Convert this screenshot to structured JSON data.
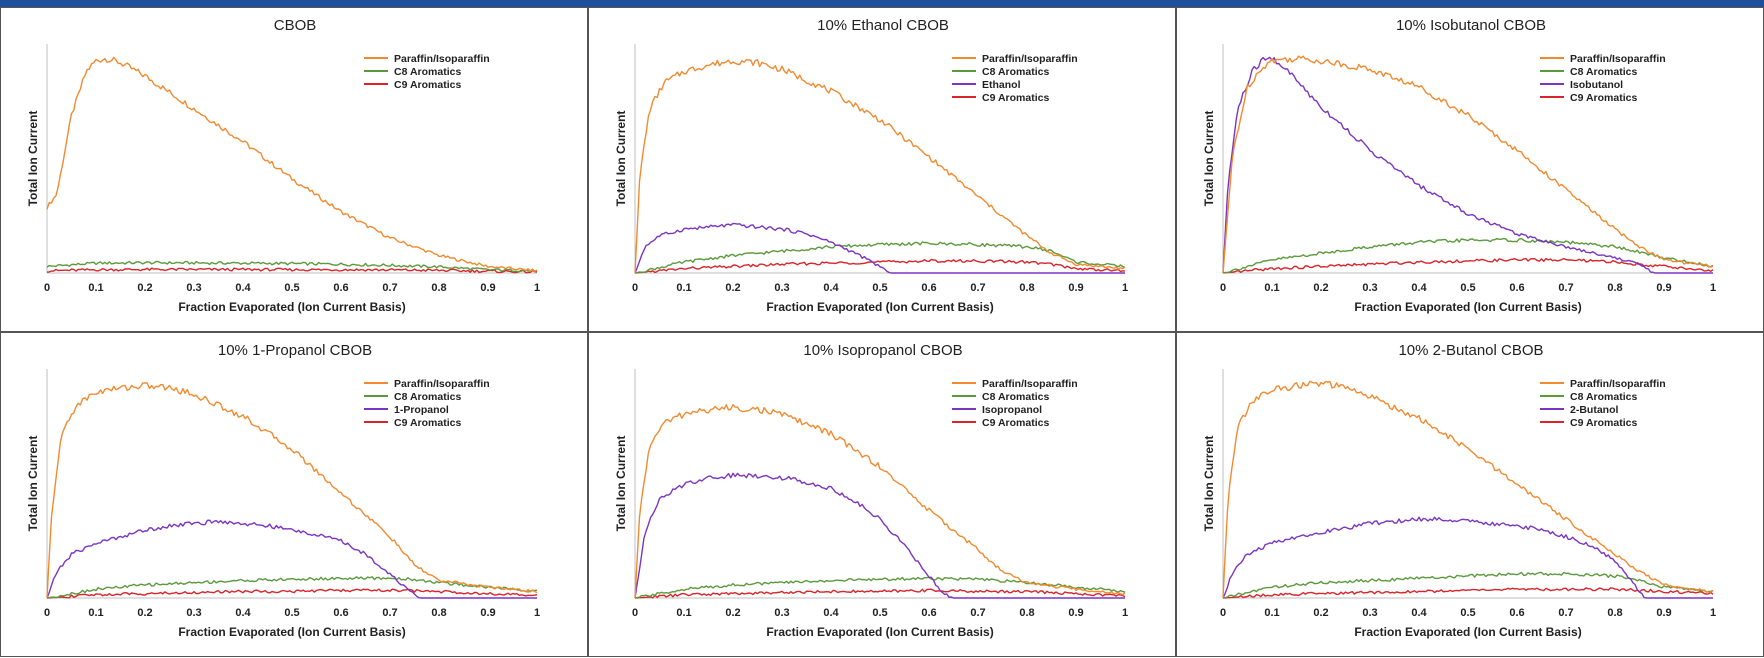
{
  "colors": {
    "paraffin": "#f28a30",
    "c8": "#5b9a3c",
    "c9": "#d9242a",
    "alcohol": "#7b35c0",
    "header_bar": "#1f4e9a"
  },
  "chart_data": [
    {
      "type": "line",
      "title": "CBOB",
      "xlabel": "Fraction Evaporated (Ion Current Basis)",
      "ylabel": "Total Ion Current",
      "x_ticks": [
        "0",
        "0.1",
        "0.2",
        "0.3",
        "0.4",
        "0.5",
        "0.6",
        "0.7",
        "0.8",
        "0.9",
        "1"
      ],
      "xlim": [
        0,
        1
      ],
      "ylim": [
        0,
        1
      ],
      "grid": false,
      "legend_position": "top-right",
      "series": [
        {
          "name": "Paraffin/Isoparaffin",
          "color_key": "paraffin",
          "x": [
            0,
            0.02,
            0.05,
            0.08,
            0.1,
            0.12,
            0.15,
            0.2,
            0.3,
            0.4,
            0.5,
            0.6,
            0.7,
            0.8,
            0.9,
            1.0
          ],
          "y": [
            0.3,
            0.36,
            0.72,
            0.92,
            0.97,
            0.98,
            0.96,
            0.9,
            0.75,
            0.6,
            0.43,
            0.28,
            0.16,
            0.08,
            0.03,
            0.01
          ]
        },
        {
          "name": "C8 Aromatics",
          "color_key": "c8",
          "x": [
            0,
            0.1,
            0.2,
            0.3,
            0.4,
            0.5,
            0.6,
            0.7,
            0.8,
            0.9,
            1.0
          ],
          "y": [
            0.03,
            0.045,
            0.047,
            0.046,
            0.045,
            0.043,
            0.04,
            0.035,
            0.028,
            0.015,
            0.01
          ]
        },
        {
          "name": "C9 Aromatics",
          "color_key": "c9",
          "x": [
            0,
            0.1,
            0.2,
            0.3,
            0.4,
            0.5,
            0.6,
            0.7,
            0.8,
            0.9,
            1.0
          ],
          "y": [
            0.01,
            0.015,
            0.016,
            0.016,
            0.016,
            0.015,
            0.015,
            0.014,
            0.012,
            0.008,
            0.005
          ]
        }
      ]
    },
    {
      "type": "line",
      "title": "10% Ethanol CBOB",
      "xlabel": "Fraction Evaporated (Ion Current Basis)",
      "ylabel": "Total Ion Current",
      "x_ticks": [
        "0",
        "0.1",
        "0.2",
        "0.3",
        "0.4",
        "0.5",
        "0.6",
        "0.7",
        "0.8",
        "0.9",
        "1"
      ],
      "xlim": [
        0,
        1
      ],
      "ylim": [
        0,
        1
      ],
      "grid": false,
      "legend_position": "top-right",
      "series": [
        {
          "name": "Paraffin/Isoparaffin",
          "color_key": "paraffin",
          "x": [
            0,
            0.01,
            0.03,
            0.06,
            0.1,
            0.15,
            0.2,
            0.25,
            0.3,
            0.4,
            0.5,
            0.6,
            0.7,
            0.8,
            0.85,
            0.9,
            1.0
          ],
          "y": [
            0,
            0.45,
            0.75,
            0.87,
            0.92,
            0.95,
            0.97,
            0.96,
            0.93,
            0.83,
            0.7,
            0.53,
            0.35,
            0.17,
            0.09,
            0.04,
            0.02
          ]
        },
        {
          "name": "C8 Aromatics",
          "color_key": "c8",
          "x": [
            0,
            0.1,
            0.2,
            0.3,
            0.4,
            0.5,
            0.6,
            0.7,
            0.8,
            0.85,
            0.9,
            1.0
          ],
          "y": [
            0,
            0.05,
            0.08,
            0.1,
            0.12,
            0.13,
            0.135,
            0.13,
            0.12,
            0.1,
            0.05,
            0.03
          ]
        },
        {
          "name": "Ethanol",
          "color_key": "alcohol",
          "x": [
            0,
            0.02,
            0.05,
            0.1,
            0.15,
            0.2,
            0.25,
            0.3,
            0.35,
            0.4,
            0.45,
            0.5,
            0.52,
            1.0
          ],
          "y": [
            0,
            0.12,
            0.17,
            0.2,
            0.21,
            0.22,
            0.21,
            0.2,
            0.18,
            0.14,
            0.09,
            0.03,
            0,
            0
          ]
        },
        {
          "name": "C9 Aromatics",
          "color_key": "c9",
          "x": [
            0,
            0.1,
            0.2,
            0.3,
            0.4,
            0.5,
            0.6,
            0.7,
            0.8,
            0.85,
            0.9,
            1.0
          ],
          "y": [
            0,
            0.02,
            0.03,
            0.04,
            0.045,
            0.05,
            0.055,
            0.055,
            0.05,
            0.04,
            0.02,
            0.01
          ]
        }
      ]
    },
    {
      "type": "line",
      "title": "10% Isobutanol CBOB",
      "xlabel": "Fraction Evaporated (Ion Current Basis)",
      "ylabel": "Total Ion Current",
      "x_ticks": [
        "0",
        "0.1",
        "0.2",
        "0.3",
        "0.4",
        "0.5",
        "0.6",
        "0.7",
        "0.8",
        "0.9",
        "1"
      ],
      "xlim": [
        0,
        1
      ],
      "ylim": [
        0,
        1
      ],
      "grid": false,
      "legend_position": "top-right",
      "series": [
        {
          "name": "Paraffin/Isoparaffin",
          "color_key": "paraffin",
          "x": [
            0,
            0.02,
            0.05,
            0.08,
            0.1,
            0.15,
            0.2,
            0.3,
            0.4,
            0.5,
            0.6,
            0.7,
            0.8,
            0.85,
            0.9,
            1.0
          ],
          "y": [
            0,
            0.55,
            0.85,
            0.94,
            0.97,
            0.98,
            0.97,
            0.93,
            0.85,
            0.72,
            0.56,
            0.38,
            0.2,
            0.12,
            0.06,
            0.03
          ]
        },
        {
          "name": "C8 Aromatics",
          "color_key": "c8",
          "x": [
            0,
            0.1,
            0.2,
            0.3,
            0.4,
            0.5,
            0.6,
            0.7,
            0.8,
            0.9,
            1.0
          ],
          "y": [
            0,
            0.06,
            0.09,
            0.12,
            0.14,
            0.15,
            0.15,
            0.14,
            0.12,
            0.07,
            0.03
          ]
        },
        {
          "name": "Isobutanol",
          "color_key": "alcohol",
          "x": [
            0,
            0.01,
            0.03,
            0.06,
            0.08,
            0.1,
            0.12,
            0.15,
            0.2,
            0.3,
            0.4,
            0.5,
            0.6,
            0.7,
            0.8,
            0.85,
            0.88,
            1.0
          ],
          "y": [
            0,
            0.4,
            0.75,
            0.92,
            0.97,
            0.98,
            0.95,
            0.88,
            0.76,
            0.56,
            0.4,
            0.27,
            0.18,
            0.12,
            0.07,
            0.04,
            0,
            0
          ]
        },
        {
          "name": "C9 Aromatics",
          "color_key": "c9",
          "x": [
            0,
            0.1,
            0.2,
            0.3,
            0.4,
            0.5,
            0.6,
            0.7,
            0.8,
            0.9,
            1.0
          ],
          "y": [
            0,
            0.02,
            0.03,
            0.04,
            0.05,
            0.055,
            0.06,
            0.06,
            0.05,
            0.03,
            0.01
          ]
        }
      ]
    },
    {
      "type": "line",
      "title": "10% 1-Propanol CBOB",
      "xlabel": "Fraction Evaporated (Ion Current Basis)",
      "ylabel": "Total Ion Current",
      "x_ticks": [
        "0",
        "0.1",
        "0.2",
        "0.3",
        "0.4",
        "0.5",
        "0.6",
        "0.7",
        "0.8",
        "0.9",
        "1"
      ],
      "xlim": [
        0,
        1
      ],
      "ylim": [
        0,
        1
      ],
      "grid": false,
      "legend_position": "top-right",
      "series": [
        {
          "name": "Paraffin/Isoparaffin",
          "color_key": "paraffin",
          "x": [
            0,
            0.01,
            0.03,
            0.06,
            0.1,
            0.15,
            0.2,
            0.25,
            0.3,
            0.4,
            0.5,
            0.6,
            0.7,
            0.75,
            0.8,
            0.9,
            1.0
          ],
          "y": [
            0,
            0.4,
            0.75,
            0.88,
            0.94,
            0.96,
            0.97,
            0.96,
            0.93,
            0.83,
            0.68,
            0.48,
            0.28,
            0.15,
            0.08,
            0.05,
            0.03
          ]
        },
        {
          "name": "C8 Aromatics",
          "color_key": "c8",
          "x": [
            0,
            0.1,
            0.2,
            0.3,
            0.4,
            0.5,
            0.6,
            0.7,
            0.75,
            0.8,
            0.9,
            1.0
          ],
          "y": [
            0,
            0.04,
            0.06,
            0.07,
            0.08,
            0.085,
            0.09,
            0.09,
            0.085,
            0.07,
            0.05,
            0.03
          ]
        },
        {
          "name": "1-Propanol",
          "color_key": "alcohol",
          "x": [
            0,
            0.02,
            0.05,
            0.1,
            0.15,
            0.2,
            0.25,
            0.3,
            0.35,
            0.4,
            0.45,
            0.5,
            0.55,
            0.6,
            0.65,
            0.7,
            0.74,
            0.76,
            1.0
          ],
          "y": [
            0,
            0.12,
            0.2,
            0.25,
            0.28,
            0.31,
            0.33,
            0.34,
            0.35,
            0.34,
            0.33,
            0.31,
            0.29,
            0.26,
            0.2,
            0.11,
            0.03,
            0,
            0
          ]
        },
        {
          "name": "C9 Aromatics",
          "color_key": "c9",
          "x": [
            0,
            0.1,
            0.2,
            0.3,
            0.4,
            0.5,
            0.6,
            0.7,
            0.8,
            0.9,
            1.0
          ],
          "y": [
            0,
            0.015,
            0.02,
            0.025,
            0.03,
            0.03,
            0.035,
            0.035,
            0.03,
            0.02,
            0.01
          ]
        }
      ]
    },
    {
      "type": "line",
      "title": "10% Isopropanol CBOB",
      "xlabel": "Fraction Evaporated (Ion Current Basis)",
      "ylabel": "Total Ion Current",
      "x_ticks": [
        "0",
        "0.1",
        "0.2",
        "0.3",
        "0.4",
        "0.5",
        "0.6",
        "0.7",
        "0.8",
        "0.9",
        "1"
      ],
      "xlim": [
        0,
        1
      ],
      "ylim": [
        0,
        1
      ],
      "grid": false,
      "legend_position": "top-right",
      "series": [
        {
          "name": "Paraffin/Isoparaffin",
          "color_key": "paraffin",
          "x": [
            0,
            0.01,
            0.03,
            0.06,
            0.1,
            0.15,
            0.2,
            0.25,
            0.3,
            0.4,
            0.5,
            0.6,
            0.7,
            0.75,
            0.8,
            0.9,
            1.0
          ],
          "y": [
            0,
            0.4,
            0.7,
            0.8,
            0.84,
            0.86,
            0.87,
            0.86,
            0.84,
            0.75,
            0.6,
            0.4,
            0.22,
            0.12,
            0.07,
            0.04,
            0.02
          ]
        },
        {
          "name": "C8 Aromatics",
          "color_key": "c8",
          "x": [
            0,
            0.1,
            0.2,
            0.3,
            0.4,
            0.5,
            0.6,
            0.7,
            0.8,
            0.9,
            1.0
          ],
          "y": [
            0,
            0.04,
            0.06,
            0.07,
            0.08,
            0.085,
            0.09,
            0.085,
            0.07,
            0.05,
            0.03
          ]
        },
        {
          "name": "Isopropanol",
          "color_key": "alcohol",
          "x": [
            0,
            0.02,
            0.05,
            0.1,
            0.15,
            0.2,
            0.25,
            0.3,
            0.35,
            0.4,
            0.45,
            0.5,
            0.55,
            0.6,
            0.63,
            0.65,
            1.0
          ],
          "y": [
            0,
            0.3,
            0.45,
            0.52,
            0.55,
            0.56,
            0.56,
            0.55,
            0.53,
            0.5,
            0.44,
            0.36,
            0.24,
            0.1,
            0.02,
            0,
            0
          ]
        },
        {
          "name": "C9 Aromatics",
          "color_key": "c9",
          "x": [
            0,
            0.1,
            0.2,
            0.3,
            0.4,
            0.5,
            0.6,
            0.7,
            0.8,
            0.9,
            1.0
          ],
          "y": [
            0,
            0.015,
            0.02,
            0.025,
            0.03,
            0.03,
            0.035,
            0.03,
            0.03,
            0.02,
            0.01
          ]
        }
      ]
    },
    {
      "type": "line",
      "title": "10% 2-Butanol CBOB",
      "xlabel": "Fraction Evaporated (Ion Current Basis)",
      "ylabel": "Total Ion Current",
      "x_ticks": [
        "0",
        "0.1",
        "0.2",
        "0.3",
        "0.4",
        "0.5",
        "0.6",
        "0.7",
        "0.8",
        "0.9",
        "1"
      ],
      "xlim": [
        0,
        1
      ],
      "ylim": [
        0,
        1
      ],
      "grid": false,
      "legend_position": "top-right",
      "series": [
        {
          "name": "Paraffin/Isoparaffin",
          "color_key": "paraffin",
          "x": [
            0,
            0.01,
            0.03,
            0.06,
            0.1,
            0.15,
            0.2,
            0.25,
            0.3,
            0.4,
            0.5,
            0.6,
            0.7,
            0.8,
            0.85,
            0.9,
            1.0
          ],
          "y": [
            0,
            0.45,
            0.78,
            0.9,
            0.95,
            0.97,
            0.98,
            0.96,
            0.92,
            0.82,
            0.68,
            0.52,
            0.36,
            0.2,
            0.12,
            0.06,
            0.03
          ]
        },
        {
          "name": "C8 Aromatics",
          "color_key": "c8",
          "x": [
            0,
            0.1,
            0.2,
            0.3,
            0.4,
            0.5,
            0.6,
            0.7,
            0.8,
            0.85,
            0.9,
            1.0
          ],
          "y": [
            0,
            0.05,
            0.07,
            0.08,
            0.09,
            0.1,
            0.11,
            0.11,
            0.1,
            0.08,
            0.05,
            0.03
          ]
        },
        {
          "name": "2-Butanol",
          "color_key": "alcohol",
          "x": [
            0,
            0.02,
            0.05,
            0.1,
            0.15,
            0.2,
            0.25,
            0.3,
            0.35,
            0.4,
            0.45,
            0.5,
            0.55,
            0.6,
            0.65,
            0.7,
            0.75,
            0.8,
            0.83,
            0.86,
            1.0
          ],
          "y": [
            0,
            0.12,
            0.2,
            0.25,
            0.28,
            0.3,
            0.32,
            0.34,
            0.35,
            0.36,
            0.36,
            0.35,
            0.34,
            0.33,
            0.31,
            0.28,
            0.24,
            0.17,
            0.09,
            0,
            0
          ]
        },
        {
          "name": "C9 Aromatics",
          "color_key": "c9",
          "x": [
            0,
            0.1,
            0.2,
            0.3,
            0.4,
            0.5,
            0.6,
            0.7,
            0.8,
            0.9,
            1.0
          ],
          "y": [
            0,
            0.015,
            0.02,
            0.025,
            0.03,
            0.035,
            0.04,
            0.04,
            0.04,
            0.03,
            0.02
          ]
        }
      ]
    }
  ]
}
